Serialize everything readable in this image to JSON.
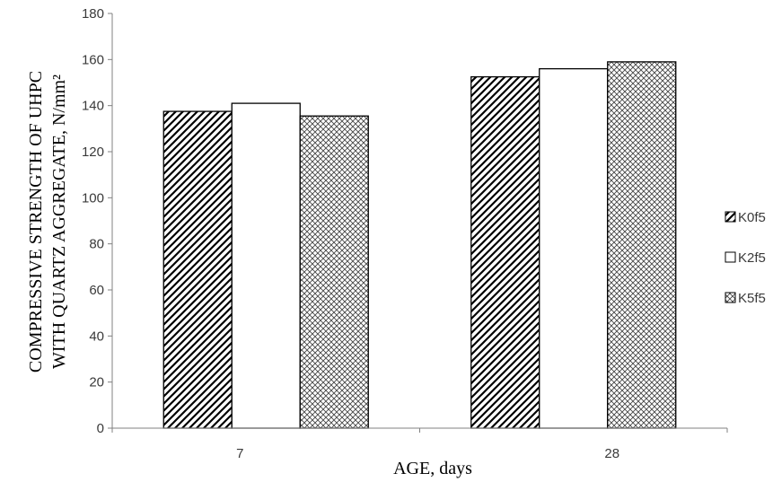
{
  "chart_data": {
    "type": "bar",
    "categories": [
      "7",
      "28"
    ],
    "series": [
      {
        "name": "K0f5",
        "values": [
          137.5,
          152.5
        ],
        "pattern": "diagonal-hatch"
      },
      {
        "name": "K2f5",
        "values": [
          141,
          156
        ],
        "pattern": "solid-white"
      },
      {
        "name": "K5f5",
        "values": [
          135.5,
          159
        ],
        "pattern": "crosshatch"
      }
    ],
    "xlabel": "AGE, days",
    "ylabel_lines": [
      "COMPRESSIVE STRENGTH OF UHPC",
      "WITH QUARTZ AGGREGATE, N/mm²"
    ],
    "ylim": [
      0,
      180
    ],
    "yticks": [
      0,
      20,
      40,
      60,
      80,
      100,
      120,
      140,
      160,
      180
    ],
    "grid": false,
    "legend_position": "right",
    "colors": {
      "bar_outline": "#000000",
      "axis": "#808080",
      "text": "#3a3a3a"
    }
  }
}
